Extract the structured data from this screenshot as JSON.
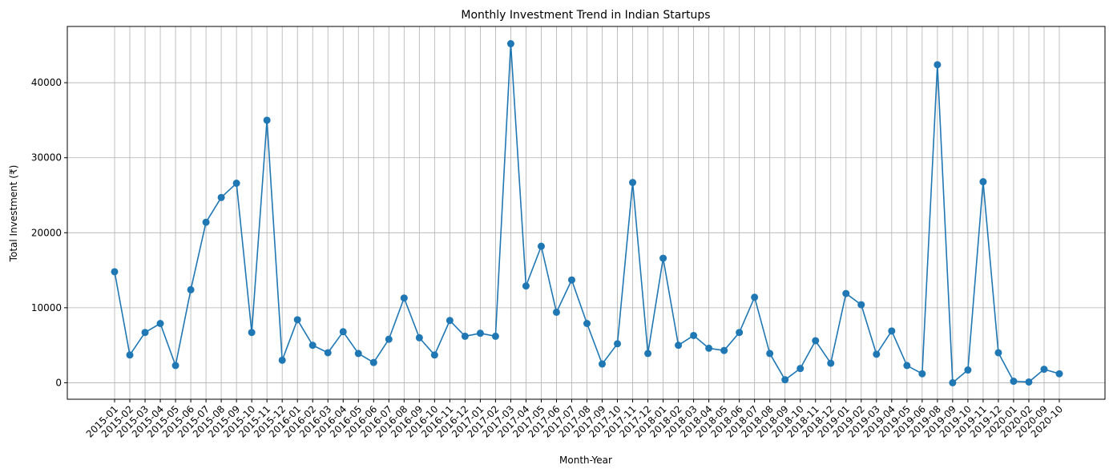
{
  "chart_data": {
    "type": "line",
    "title": "Monthly Investment Trend in Indian Startups",
    "xlabel": "Month-Year",
    "ylabel": "Total Investment (₹)",
    "ylim": [
      -2200,
      47500
    ],
    "yticks": [
      0,
      10000,
      20000,
      30000,
      40000
    ],
    "grid": true,
    "marker": "circle",
    "color": "#1f77b4",
    "categories": [
      "2015-01",
      "2015-02",
      "2015-03",
      "2015-04",
      "2015-05",
      "2015-06",
      "2015-07",
      "2015-08",
      "2015-09",
      "2015-10",
      "2015-11",
      "2015-12",
      "2016-01",
      "2016-02",
      "2016-03",
      "2016-04",
      "2016-05",
      "2016-06",
      "2016-07",
      "2016-08",
      "2016-09",
      "2016-10",
      "2016-11",
      "2016-12",
      "2017-01",
      "2017-02",
      "2017-03",
      "2017-04",
      "2017-05",
      "2017-06",
      "2017-07",
      "2017-08",
      "2017-09",
      "2017-10",
      "2017-11",
      "2017-12",
      "2018-01",
      "2018-02",
      "2018-03",
      "2018-04",
      "2018-05",
      "2018-06",
      "2018-07",
      "2018-08",
      "2018-09",
      "2018-10",
      "2018-11",
      "2018-12",
      "2019-01",
      "2019-02",
      "2019-03",
      "2019-04",
      "2019-05",
      "2019-06",
      "2019-08",
      "2019-09",
      "2019-10",
      "2019-11",
      "2019-12",
      "2020-01",
      "2020-02",
      "2020-09",
      "2020-10"
    ],
    "values": [
      14800,
      3700,
      6700,
      7900,
      2300,
      12400,
      21400,
      24700,
      26600,
      6700,
      35000,
      3000,
      8400,
      5000,
      4000,
      6800,
      3900,
      2700,
      5800,
      11300,
      6000,
      3700,
      8300,
      6200,
      6600,
      6200,
      45200,
      12900,
      18200,
      9400,
      13700,
      7900,
      2500,
      5200,
      26700,
      3900,
      16600,
      5000,
      6300,
      4600,
      4300,
      6700,
      11400,
      3900,
      400,
      1900,
      5600,
      2600,
      11900,
      10400,
      3800,
      6900,
      2300,
      1200,
      42400,
      0,
      1700,
      26800,
      4000,
      200,
      100,
      1800,
      1200
    ]
  }
}
